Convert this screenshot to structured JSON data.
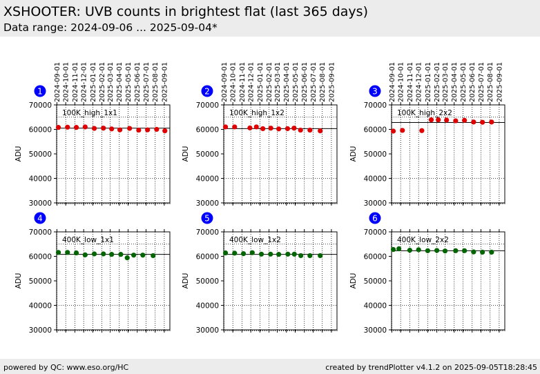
{
  "header": {
    "title": "XSHOOTER: UVB counts in brightest flat (last 365 days)",
    "subtitle": "Data range: 2024-09-06 ... 2025-09-04*"
  },
  "footer": {
    "left": "powered by QC: www.eso.org/HC",
    "right": "created by trendPlotter v4.1.2 on 2025-09-05T18:28:45"
  },
  "colors": {
    "red": "#e00000",
    "green": "#006400",
    "badge": "#0000ff",
    "badge_text": "#ffffff"
  },
  "chart_data": [
    {
      "type": "scatter",
      "panel": "1",
      "label": "100K_high_1x1",
      "color": "red",
      "ylabel": "ADU",
      "ylim": [
        30000,
        70000
      ],
      "yticks": [
        30000,
        40000,
        50000,
        60000,
        70000
      ],
      "xlim": [
        "2024-08-31",
        "2025-09-20"
      ],
      "xticks": [
        "2024-09-01",
        "2024-10-01",
        "2024-11-01",
        "2024-12-01",
        "2025-01-01",
        "2025-02-01",
        "2025-03-01",
        "2025-04-01",
        "2025-05-01",
        "2025-06-01",
        "2025-07-01",
        "2025-08-01",
        "2025-09-01"
      ],
      "ref_line": 60500,
      "dotted_line": 65000,
      "points": [
        {
          "x": "2024-09-06",
          "y": 60800
        },
        {
          "x": "2024-10-07",
          "y": 60900
        },
        {
          "x": "2024-11-06",
          "y": 60800
        },
        {
          "x": "2024-12-06",
          "y": 61000
        },
        {
          "x": "2025-01-06",
          "y": 60400
        },
        {
          "x": "2025-02-06",
          "y": 60500
        },
        {
          "x": "2025-03-06",
          "y": 60200
        },
        {
          "x": "2025-04-03",
          "y": 59800
        },
        {
          "x": "2025-05-06",
          "y": 60400
        },
        {
          "x": "2025-06-06",
          "y": 59700
        },
        {
          "x": "2025-07-06",
          "y": 59800
        },
        {
          "x": "2025-08-06",
          "y": 60000
        },
        {
          "x": "2025-09-03",
          "y": 59400
        }
      ]
    },
    {
      "type": "scatter",
      "panel": "2",
      "label": "100K_high_1x2",
      "color": "red",
      "ylabel": "ADU",
      "ylim": [
        30000,
        70000
      ],
      "yticks": [
        30000,
        40000,
        50000,
        60000,
        70000
      ],
      "xlim": [
        "2024-08-31",
        "2025-09-20"
      ],
      "xticks": [
        "2024-09-01",
        "2024-10-01",
        "2024-11-01",
        "2024-12-01",
        "2025-01-01",
        "2025-02-01",
        "2025-03-01",
        "2025-04-01",
        "2025-05-01",
        "2025-06-01",
        "2025-07-01",
        "2025-08-01",
        "2025-09-01"
      ],
      "ref_line": 60300,
      "dotted_line": 65000,
      "points": [
        {
          "x": "2024-09-06",
          "y": 61000
        },
        {
          "x": "2024-10-07",
          "y": 61000
        },
        {
          "x": "2024-11-28",
          "y": 60600
        },
        {
          "x": "2024-12-20",
          "y": 61000
        },
        {
          "x": "2025-01-11",
          "y": 60300
        },
        {
          "x": "2025-02-07",
          "y": 60500
        },
        {
          "x": "2025-03-06",
          "y": 60200
        },
        {
          "x": "2025-04-05",
          "y": 60300
        },
        {
          "x": "2025-04-27",
          "y": 60500
        },
        {
          "x": "2025-05-19",
          "y": 59700
        },
        {
          "x": "2025-06-20",
          "y": 59700
        },
        {
          "x": "2025-07-25",
          "y": 59400
        }
      ]
    },
    {
      "type": "scatter",
      "panel": "3",
      "label": "100K_high_2x2",
      "color": "red",
      "ylabel": "ADU",
      "ylim": [
        30000,
        70000
      ],
      "yticks": [
        30000,
        40000,
        50000,
        60000,
        70000
      ],
      "xlim": [
        "2024-08-31",
        "2025-09-20"
      ],
      "xticks": [
        "2024-09-01",
        "2024-10-01",
        "2024-11-01",
        "2024-12-01",
        "2025-01-01",
        "2025-02-01",
        "2025-03-01",
        "2025-04-01",
        "2025-05-01",
        "2025-06-01",
        "2025-07-01",
        "2025-08-01",
        "2025-09-01"
      ],
      "ref_line": 62800,
      "dotted_line": 65000,
      "points": [
        {
          "x": "2024-09-06",
          "y": 59300
        },
        {
          "x": "2024-10-07",
          "y": 59600
        },
        {
          "x": "2024-12-12",
          "y": 59500
        },
        {
          "x": "2025-01-13",
          "y": 63900
        },
        {
          "x": "2025-02-06",
          "y": 63900
        },
        {
          "x": "2025-03-06",
          "y": 63800
        },
        {
          "x": "2025-04-06",
          "y": 63500
        },
        {
          "x": "2025-05-06",
          "y": 63700
        },
        {
          "x": "2025-06-06",
          "y": 63000
        },
        {
          "x": "2025-07-06",
          "y": 62900
        },
        {
          "x": "2025-08-06",
          "y": 63000
        }
      ]
    },
    {
      "type": "scatter",
      "panel": "4",
      "label": "400K_low_1x1",
      "color": "green",
      "ylabel": "ADU",
      "ylim": [
        30000,
        70000
      ],
      "yticks": [
        30000,
        40000,
        50000,
        60000,
        70000
      ],
      "xlim": [
        "2024-08-31",
        "2025-09-20"
      ],
      "xticks": [
        "2024-09-01",
        "2024-10-01",
        "2024-11-01",
        "2024-12-01",
        "2025-01-01",
        "2025-02-01",
        "2025-03-01",
        "2025-04-01",
        "2025-05-01",
        "2025-06-01",
        "2025-07-01",
        "2025-08-01",
        "2025-09-01"
      ],
      "ref_line": 60800,
      "dotted_line": 65000,
      "points": [
        {
          "x": "2024-09-06",
          "y": 61600
        },
        {
          "x": "2024-10-07",
          "y": 61600
        },
        {
          "x": "2024-11-06",
          "y": 61400
        },
        {
          "x": "2024-12-06",
          "y": 60600
        },
        {
          "x": "2025-01-06",
          "y": 61000
        },
        {
          "x": "2025-02-06",
          "y": 61000
        },
        {
          "x": "2025-03-06",
          "y": 60800
        },
        {
          "x": "2025-04-06",
          "y": 60800
        },
        {
          "x": "2025-04-28",
          "y": 59400
        },
        {
          "x": "2025-05-20",
          "y": 60500
        },
        {
          "x": "2025-06-20",
          "y": 60500
        },
        {
          "x": "2025-07-25",
          "y": 60300
        }
      ]
    },
    {
      "type": "scatter",
      "panel": "5",
      "label": "400K_low_1x2",
      "color": "green",
      "ylabel": "ADU",
      "ylim": [
        30000,
        70000
      ],
      "yticks": [
        30000,
        40000,
        50000,
        60000,
        70000
      ],
      "xlim": [
        "2024-08-31",
        "2025-09-20"
      ],
      "xticks": [
        "2024-09-01",
        "2024-10-01",
        "2024-11-01",
        "2024-12-01",
        "2025-01-01",
        "2025-02-01",
        "2025-03-01",
        "2025-04-01",
        "2025-05-01",
        "2025-06-01",
        "2025-07-01",
        "2025-08-01",
        "2025-09-01"
      ],
      "ref_line": 60800,
      "dotted_line": 65000,
      "points": [
        {
          "x": "2024-09-06",
          "y": 61400
        },
        {
          "x": "2024-10-07",
          "y": 61300
        },
        {
          "x": "2024-11-06",
          "y": 61100
        },
        {
          "x": "2024-12-06",
          "y": 61500
        },
        {
          "x": "2025-01-06",
          "y": 60900
        },
        {
          "x": "2025-02-06",
          "y": 60900
        },
        {
          "x": "2025-03-06",
          "y": 60800
        },
        {
          "x": "2025-04-06",
          "y": 60900
        },
        {
          "x": "2025-04-28",
          "y": 60900
        },
        {
          "x": "2025-05-20",
          "y": 60300
        },
        {
          "x": "2025-06-20",
          "y": 60300
        },
        {
          "x": "2025-07-25",
          "y": 60300
        }
      ]
    },
    {
      "type": "scatter",
      "panel": "6",
      "label": "400K_low_2x2",
      "color": "green",
      "ylabel": "ADU",
      "ylim": [
        30000,
        70000
      ],
      "yticks": [
        30000,
        40000,
        50000,
        60000,
        70000
      ],
      "xlim": [
        "2024-08-31",
        "2025-09-20"
      ],
      "xticks": [
        "2024-09-01",
        "2024-10-01",
        "2024-11-01",
        "2024-12-01",
        "2025-01-01",
        "2025-02-01",
        "2025-03-01",
        "2025-04-01",
        "2025-05-01",
        "2025-06-01",
        "2025-07-01",
        "2025-08-01",
        "2025-09-01"
      ],
      "ref_line": 62300,
      "dotted_line": 65000,
      "points": [
        {
          "x": "2024-09-06",
          "y": 62800
        },
        {
          "x": "2024-09-25",
          "y": 63100
        },
        {
          "x": "2024-11-01",
          "y": 62500
        },
        {
          "x": "2024-12-01",
          "y": 62700
        },
        {
          "x": "2025-01-01",
          "y": 62300
        },
        {
          "x": "2025-02-01",
          "y": 62400
        },
        {
          "x": "2025-03-01",
          "y": 62200
        },
        {
          "x": "2025-04-06",
          "y": 62300
        },
        {
          "x": "2025-05-06",
          "y": 62300
        },
        {
          "x": "2025-06-06",
          "y": 61800
        },
        {
          "x": "2025-07-06",
          "y": 61700
        },
        {
          "x": "2025-08-06",
          "y": 61700
        }
      ]
    }
  ]
}
